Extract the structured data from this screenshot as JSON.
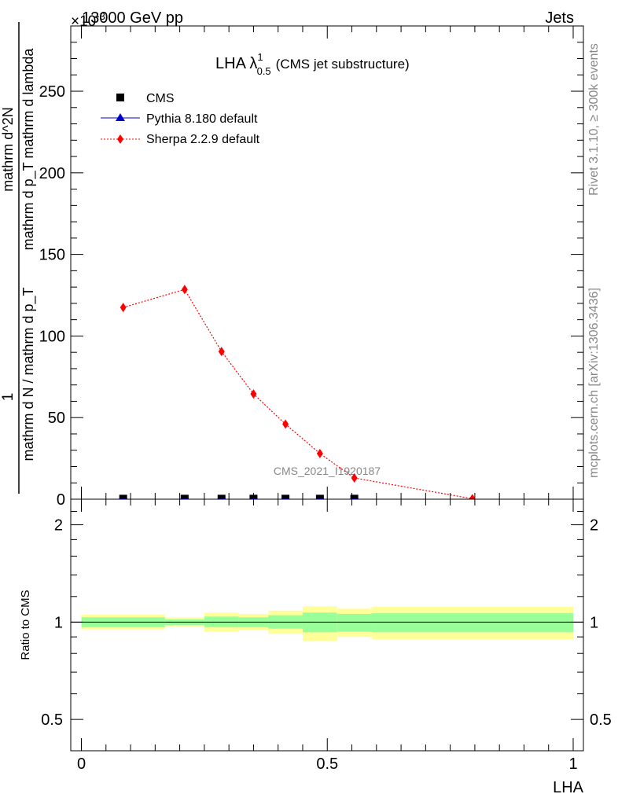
{
  "header": {
    "energy": "13000 GeV pp",
    "process": "Jets",
    "exponent": "×10",
    "exponent_power": "-3"
  },
  "side_labels": {
    "rivet": "Rivet 3.1.10, ≥ 300k events",
    "mcplots": "mcplots.cern.ch [arXiv:1306.3436]"
  },
  "watermark": "CMS_2021_I1920187",
  "chart_data": [
    {
      "type": "line",
      "title": "LHA λ",
      "title_sup": "1",
      "title_sub": "0.5",
      "subtitle": "(CMS jet substructure)",
      "xlabel": "LHA",
      "ylabel": {
        "top": "1",
        "denominator": "mathrm d N / mathrm d p_T",
        "numerator": "mathrm d^2N",
        "numerator_denominator": "mathrm d p_T mathrm d lambda",
        "numerator_sub": "T"
      },
      "xlim": [
        0,
        1
      ],
      "ylim": [
        0,
        290
      ],
      "y_ticks": [
        0,
        50,
        100,
        150,
        200,
        250
      ],
      "y_tick_labels": [
        "0",
        "50",
        "100",
        "150",
        "200",
        "250"
      ],
      "legend_position": "top-left",
      "legend": [
        {
          "name": "CMS",
          "color": "#000000",
          "marker": "square"
        },
        {
          "name": "Pythia 8.180 default",
          "color": "#0000cc",
          "marker": "triangle"
        },
        {
          "name": "Sherpa 2.2.9 default",
          "color": "#ff0000",
          "marker": "diamond"
        }
      ],
      "series": [
        {
          "name": "CMS",
          "x": [
            0.085,
            0.21,
            0.285,
            0.35,
            0.415,
            0.485,
            0.555
          ],
          "values": [
            0.3,
            0.3,
            0.3,
            0.3,
            0.3,
            0.3,
            0.3
          ]
        },
        {
          "name": "Sherpa 2.2.9 default",
          "x": [
            0.085,
            0.21,
            0.285,
            0.35,
            0.415,
            0.485,
            0.555,
            0.795
          ],
          "values": [
            117.5,
            128.5,
            90.5,
            64.5,
            46.0,
            28.0,
            13.0,
            0.3
          ]
        }
      ]
    },
    {
      "type": "area",
      "ylabel": "Ratio to CMS",
      "xlabel": "LHA",
      "xlim": [
        0,
        1
      ],
      "ylim": [
        0.4,
        2.4
      ],
      "y_scale": "log",
      "y_ticks": [
        0.5,
        1,
        2
      ],
      "y_tick_labels": [
        "0.5",
        "1",
        "2"
      ],
      "x_ticks": [
        0,
        0.5,
        1
      ],
      "x_tick_labels": [
        "0",
        "0.5",
        "1"
      ],
      "reference_line": 1,
      "bins": [
        {
          "x0": 0.0,
          "x1": 0.17,
          "stat_lo": 0.965,
          "stat_hi": 1.035,
          "tot_lo": 0.95,
          "tot_hi": 1.055
        },
        {
          "x0": 0.17,
          "x1": 0.25,
          "stat_lo": 0.98,
          "stat_hi": 1.02,
          "tot_lo": 0.97,
          "tot_hi": 1.035
        },
        {
          "x0": 0.25,
          "x1": 0.32,
          "stat_lo": 0.965,
          "stat_hi": 1.04,
          "tot_lo": 0.935,
          "tot_hi": 1.07
        },
        {
          "x0": 0.32,
          "x1": 0.38,
          "stat_lo": 0.965,
          "stat_hi": 1.035,
          "tot_lo": 0.945,
          "tot_hi": 1.06
        },
        {
          "x0": 0.38,
          "x1": 0.45,
          "stat_lo": 0.955,
          "stat_hi": 1.05,
          "tot_lo": 0.92,
          "tot_hi": 1.085
        },
        {
          "x0": 0.45,
          "x1": 0.52,
          "stat_lo": 0.93,
          "stat_hi": 1.07,
          "tot_lo": 0.875,
          "tot_hi": 1.12
        },
        {
          "x0": 0.52,
          "x1": 0.59,
          "stat_lo": 0.935,
          "stat_hi": 1.06,
          "tot_lo": 0.9,
          "tot_hi": 1.1
        },
        {
          "x0": 0.59,
          "x1": 1.0,
          "stat_lo": 0.93,
          "stat_hi": 1.065,
          "tot_lo": 0.885,
          "tot_hi": 1.115
        }
      ]
    }
  ],
  "colors": {
    "band_total": "#ffff99",
    "band_stat": "#99ff99",
    "sherpa": "#ff0000",
    "pythia": "#0000cc",
    "cms": "#000000",
    "watermark": "#888888"
  }
}
